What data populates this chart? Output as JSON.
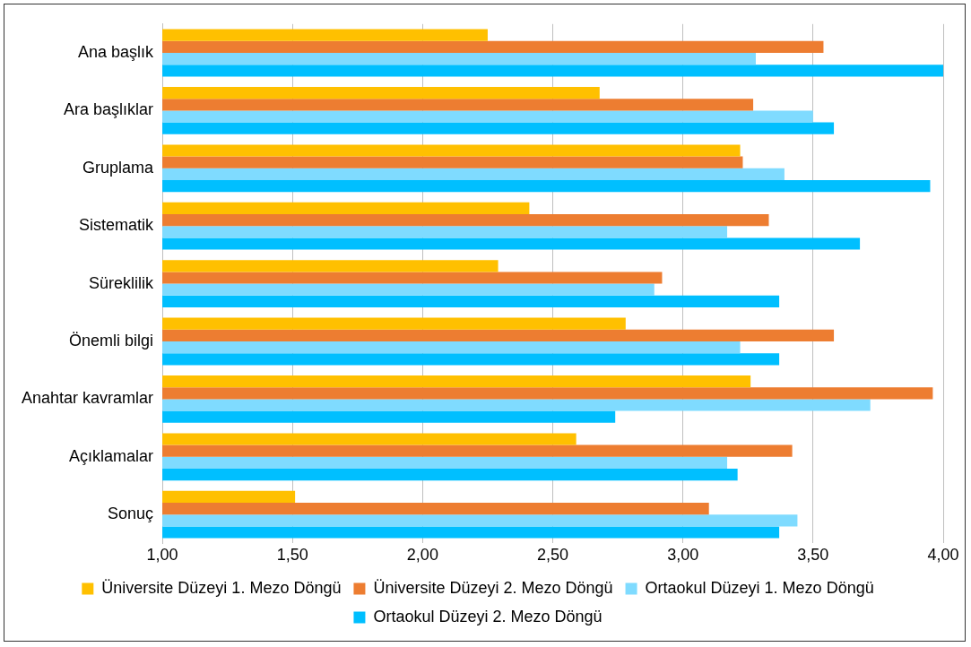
{
  "chart_data": {
    "type": "bar",
    "orientation": "horizontal",
    "categories": [
      "Ana başlık",
      "Ara başlıklar",
      "Gruplama",
      "Sistematik",
      "Süreklilik",
      "Önemli bilgi",
      "Anahtar kavramlar",
      "Açıklamalar",
      "Sonuç"
    ],
    "series": [
      {
        "name": "Üniversite Düzeyi 1. Mezo Döngü",
        "color": "#ffc000",
        "values": [
          2.25,
          2.68,
          3.22,
          2.41,
          2.29,
          2.78,
          3.26,
          2.59,
          1.51
        ]
      },
      {
        "name": "Üniversite Düzeyi 2. Mezo Döngü",
        "color": "#ed7d31",
        "values": [
          3.54,
          3.27,
          3.23,
          3.33,
          2.92,
          3.58,
          3.96,
          3.42,
          3.1
        ]
      },
      {
        "name": "Ortaokul Düzeyi 1. Mezo Döngü",
        "color": "#7fdbff",
        "values": [
          3.28,
          3.5,
          3.39,
          3.17,
          2.89,
          3.22,
          3.72,
          3.17,
          3.44
        ]
      },
      {
        "name": "Ortaokul Düzeyi 2. Mezo Döngü",
        "color": "#00bfff",
        "values": [
          4.0,
          3.58,
          3.95,
          3.68,
          3.37,
          3.37,
          2.74,
          3.21,
          3.37
        ]
      }
    ],
    "xlim": [
      1,
      4
    ],
    "xticks": [
      {
        "value": 1,
        "label": "1,00"
      },
      {
        "value": 1.5,
        "label": "1,50"
      },
      {
        "value": 2,
        "label": "2,00"
      },
      {
        "value": 2.5,
        "label": "2,50"
      },
      {
        "value": 3,
        "label": "3,00"
      },
      {
        "value": 3.5,
        "label": "3,50"
      },
      {
        "value": 4,
        "label": "4,00"
      }
    ],
    "grid": "x",
    "legend": "bottom"
  }
}
